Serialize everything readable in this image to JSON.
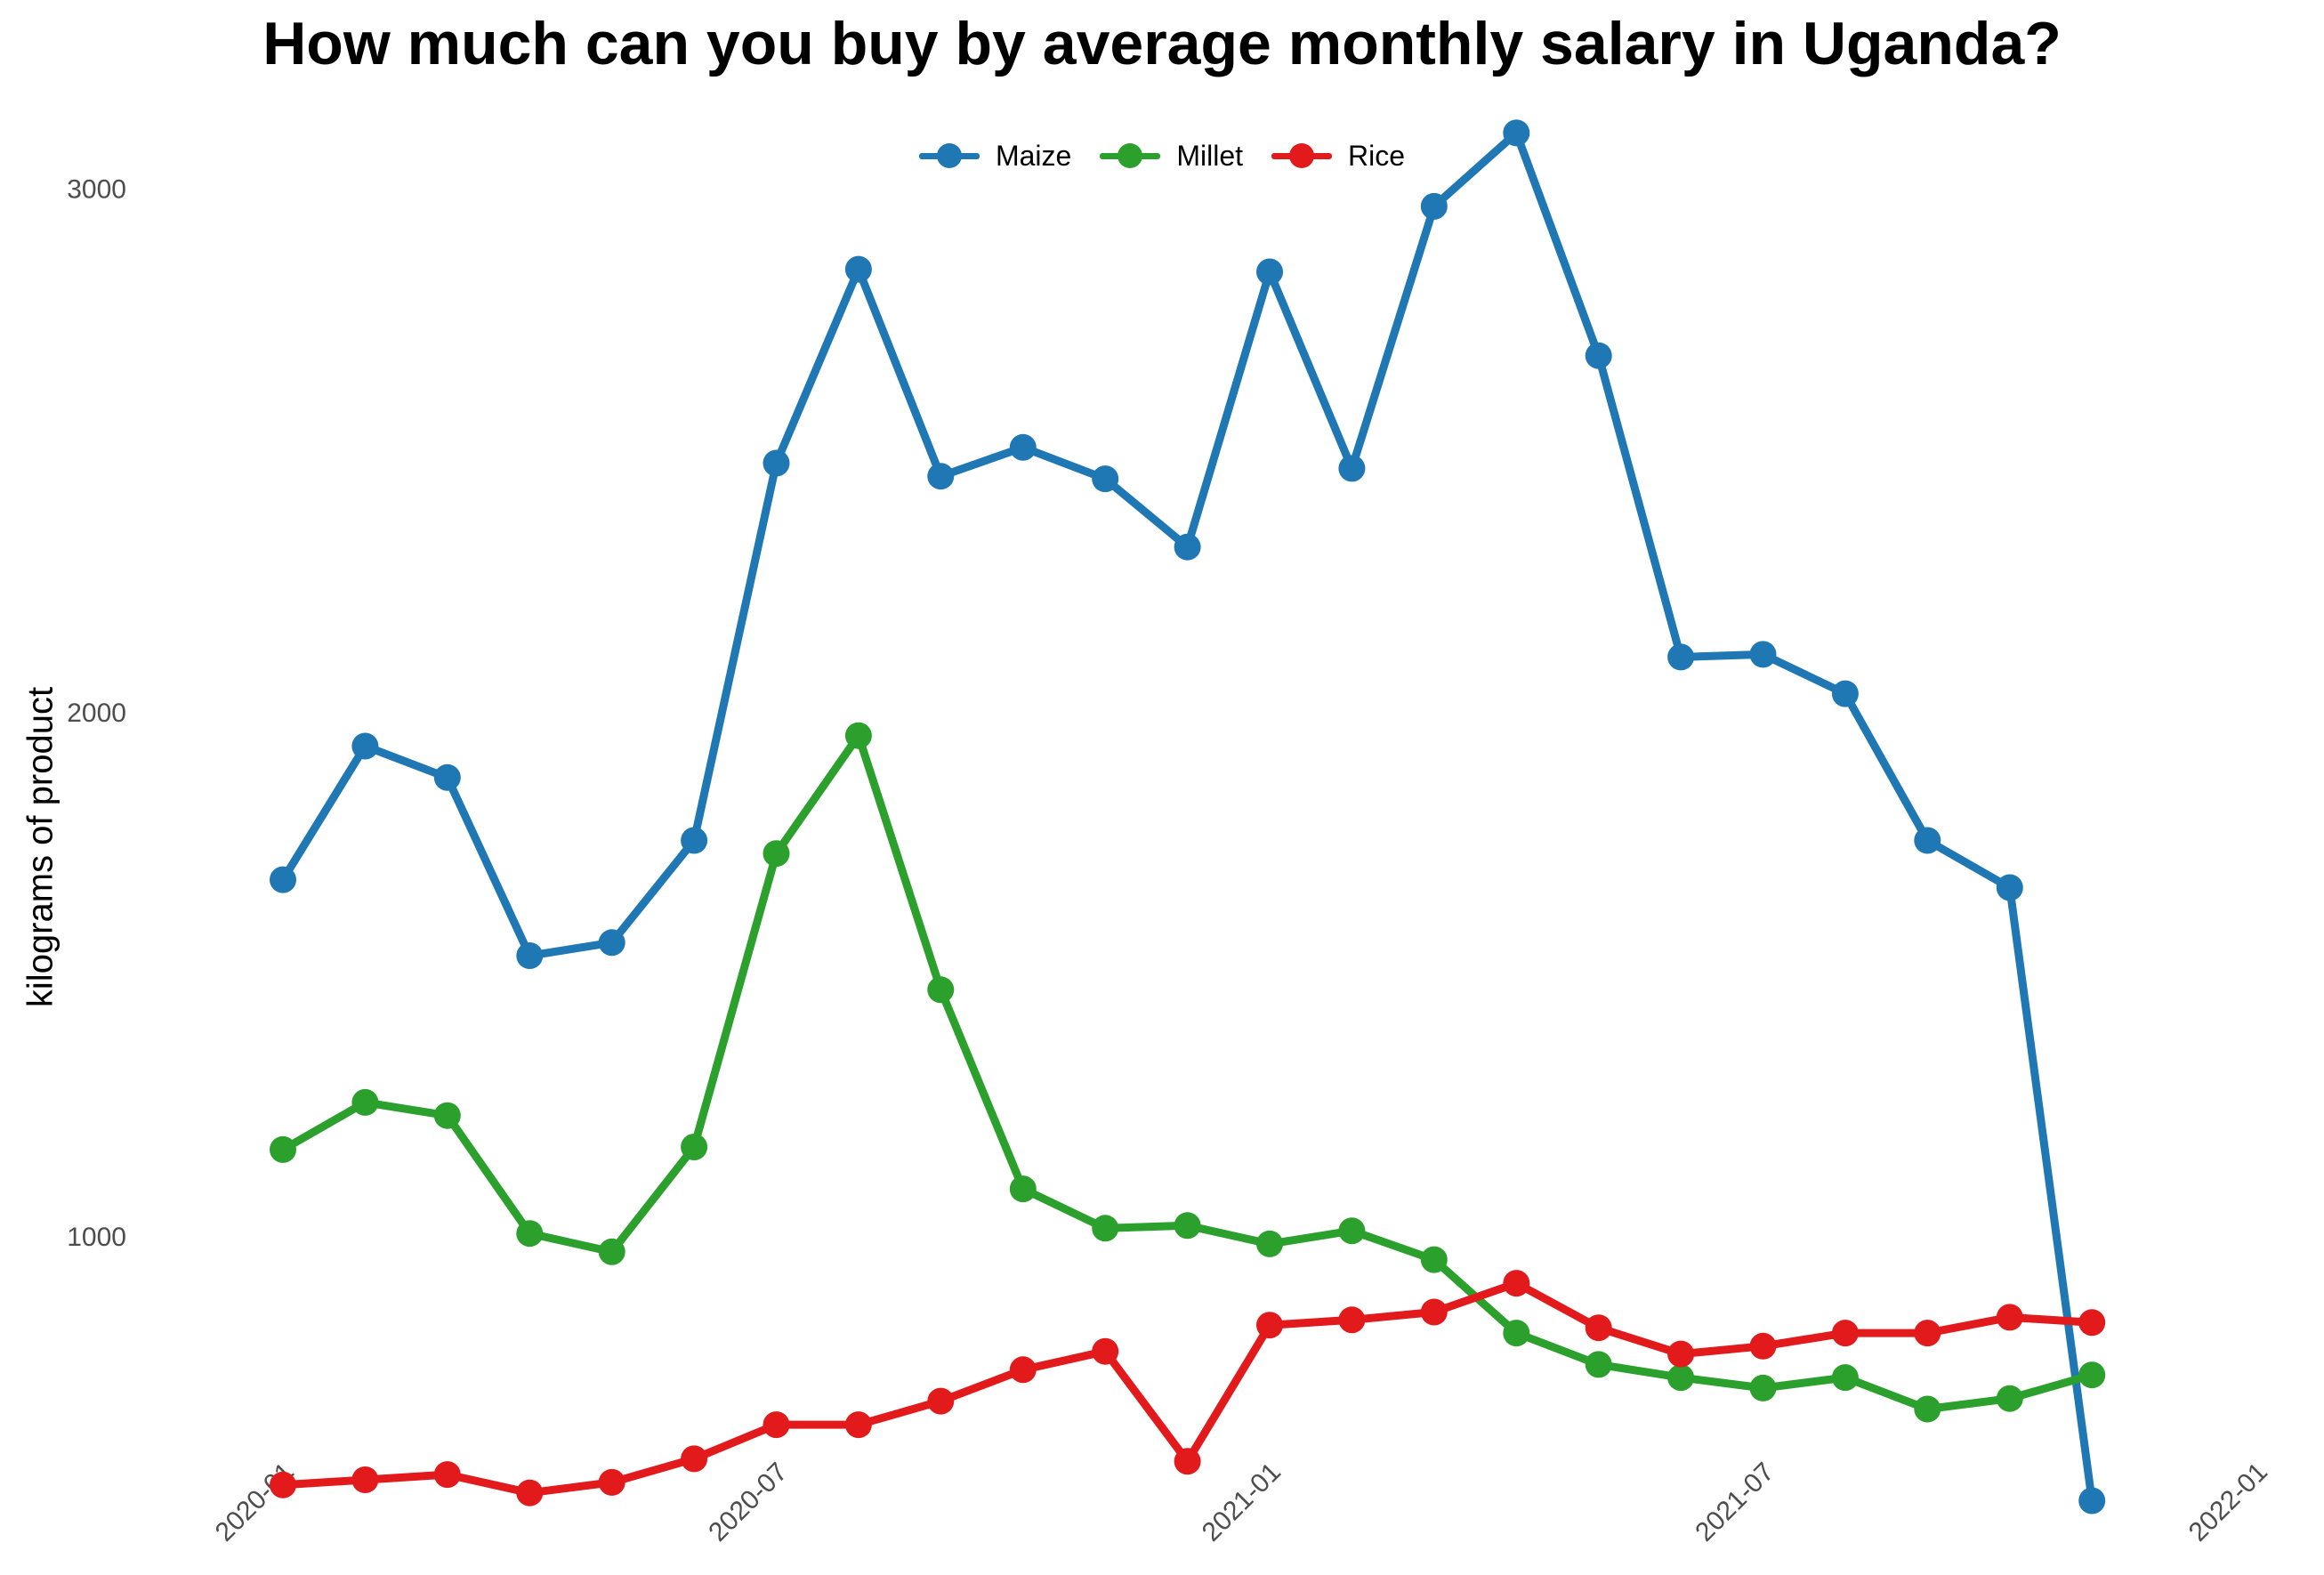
{
  "chart_data": {
    "type": "line",
    "title": "How much can you buy by average monthly salary in Uganda?",
    "xlabel": "",
    "ylabel": "kilograms of product",
    "x": [
      "2020-01",
      "2020-02",
      "2020-03",
      "2020-04",
      "2020-05",
      "2020-06",
      "2020-07",
      "2020-08",
      "2020-09",
      "2020-10",
      "2020-11",
      "2020-12",
      "2021-01",
      "2021-02",
      "2021-03",
      "2021-04",
      "2021-05",
      "2021-06",
      "2021-07",
      "2021-08",
      "2021-09",
      "2021-10",
      "2021-11"
    ],
    "x_ticks": [
      "2020-01",
      "2020-07",
      "2021-01",
      "2021-07",
      "2022-01"
    ],
    "y_ticks": [
      1000,
      2000,
      3000
    ],
    "xlim": [
      "2020-01",
      "2022-01"
    ],
    "ylim": [
      440,
      3200
    ],
    "grid": false,
    "legend_position": "top",
    "series": [
      {
        "name": "Maize",
        "color": "#1f77b4",
        "values": [
          1680,
          1935,
          1875,
          1535,
          1560,
          1755,
          2475,
          2845,
          2450,
          2505,
          2445,
          2315,
          2840,
          2465,
          2965,
          3105,
          2680,
          2105,
          2110,
          2035,
          1755,
          1665,
          495
        ]
      },
      {
        "name": "Millet",
        "color": "#2ca02c",
        "values": [
          1165,
          1255,
          1230,
          1005,
          970,
          1170,
          1730,
          1955,
          1470,
          1090,
          1015,
          1020,
          985,
          1010,
          955,
          815,
          755,
          730,
          710,
          730,
          670,
          690,
          735
        ]
      },
      {
        "name": "Rice",
        "color": "#e31a1c",
        "values": [
          525,
          535,
          545,
          510,
          530,
          575,
          640,
          640,
          685,
          745,
          780,
          570,
          830,
          840,
          855,
          910,
          825,
          775,
          790,
          815,
          815,
          845,
          835
        ]
      }
    ]
  }
}
